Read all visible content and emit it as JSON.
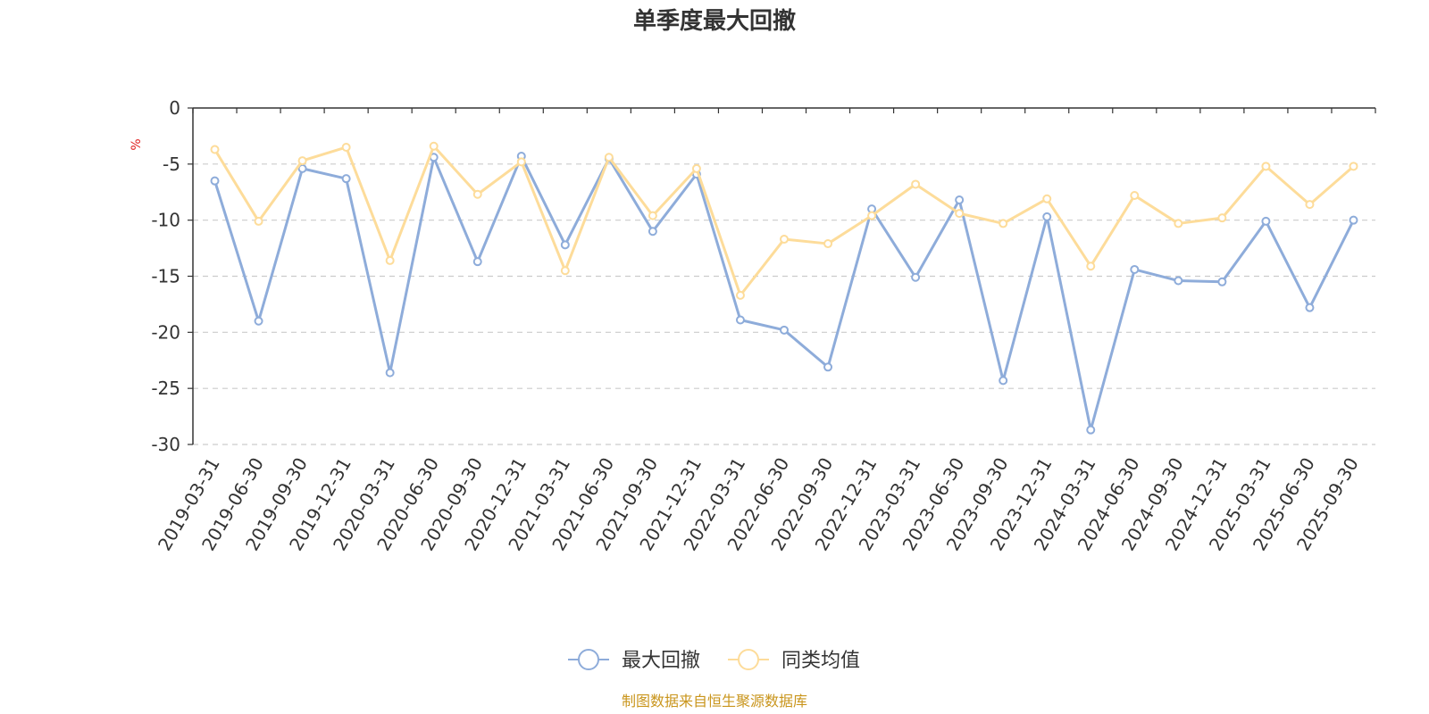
{
  "chart_data": {
    "type": "line",
    "title": "单季度最大回撤",
    "ylabel": "%",
    "ylim": [
      -30,
      0
    ],
    "yticks": [
      0,
      -5,
      -10,
      -15,
      -20,
      -25,
      -30
    ],
    "grid": true,
    "legend_position": "bottom",
    "categories": [
      "2019-03-31",
      "2019-06-30",
      "2019-09-30",
      "2019-12-31",
      "2020-03-31",
      "2020-06-30",
      "2020-09-30",
      "2020-12-31",
      "2021-03-31",
      "2021-06-30",
      "2021-09-30",
      "2021-12-31",
      "2022-03-31",
      "2022-06-30",
      "2022-09-30",
      "2022-12-31",
      "2023-03-31",
      "2023-06-30",
      "2023-09-30",
      "2023-12-31",
      "2024-03-31",
      "2024-06-30",
      "2024-09-30",
      "2024-12-31",
      "2025-03-31",
      "2025-06-30",
      "2025-09-30"
    ],
    "series": [
      {
        "name": "最大回撤",
        "color": "#8eacda",
        "values": [
          -6.5,
          -19.0,
          -5.4,
          -6.3,
          -23.6,
          -4.4,
          -13.7,
          -4.3,
          -12.2,
          -4.5,
          -11.0,
          -5.9,
          -18.9,
          -19.8,
          -23.1,
          -9.0,
          -15.1,
          -8.2,
          -24.3,
          -9.7,
          -28.7,
          -14.4,
          -15.4,
          -15.5,
          -10.1,
          -17.8,
          -10.0
        ]
      },
      {
        "name": "同类均值",
        "color": "#fddc9a",
        "values": [
          -3.7,
          -10.1,
          -4.7,
          -3.5,
          -13.6,
          -3.4,
          -7.7,
          -4.8,
          -14.5,
          -4.4,
          -9.6,
          -5.4,
          -16.7,
          -11.7,
          -12.1,
          -9.6,
          -6.8,
          -9.4,
          -10.3,
          -8.1,
          -14.1,
          -7.8,
          -10.3,
          -9.8,
          -5.2,
          -8.6,
          -5.2
        ]
      }
    ]
  },
  "source": "制图数据来自恒生聚源数据库"
}
